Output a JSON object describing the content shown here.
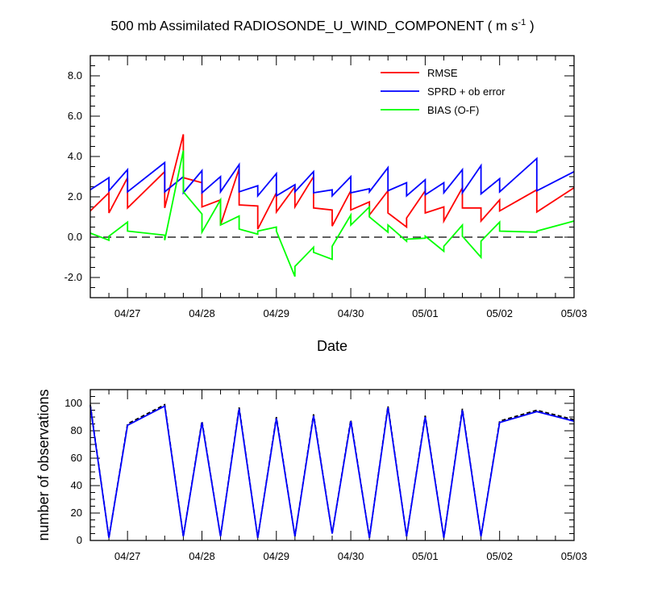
{
  "title": {
    "text": "500 mb Assimilated RADIOSONDE_U_WIND_COMPONENT ( m s",
    "sup": "-1",
    "close": " )"
  },
  "chart_data": [
    {
      "type": "line",
      "title": "500 mb Assimilated RADIOSONDE_U_WIND_COMPONENT ( m s-1 )",
      "xlabel": "Date",
      "ylabel": "",
      "xlim": [
        0,
        6.5
      ],
      "ylim": [
        -3,
        9
      ],
      "x_tick_positions": [
        0.5,
        1.5,
        2.5,
        3.5,
        4.5,
        5.5,
        6.5
      ],
      "x_tick_labels": [
        "04/27",
        "04/28",
        "04/29",
        "04/30",
        "05/01",
        "05/02",
        "05/03"
      ],
      "y_ticks": [
        -2,
        0,
        2,
        4,
        6,
        8
      ],
      "y_tick_labels": [
        "-2.0",
        "0.0",
        "2.0",
        "4.0",
        "6.0",
        "8.0"
      ],
      "legend_position": "top-right",
      "zero_line": "dashed",
      "series": [
        {
          "name": "RMSE",
          "color": "#ff0000",
          "points": [
            [
              0,
              1.3
            ],
            [
              0.25,
              2.2
            ],
            [
              0.25,
              1.2
            ],
            [
              0.5,
              2.95
            ],
            [
              0.5,
              1.45
            ],
            [
              1.0,
              3.25
            ],
            [
              1.0,
              1.45
            ],
            [
              1.25,
              5.1
            ],
            [
              1.25,
              2.95
            ],
            [
              1.5,
              2.7
            ],
            [
              1.5,
              1.5
            ],
            [
              1.75,
              1.85
            ],
            [
              1.75,
              0.6
            ],
            [
              2.0,
              3.4
            ],
            [
              2.0,
              1.6
            ],
            [
              2.25,
              1.55
            ],
            [
              2.25,
              0.4
            ],
            [
              2.5,
              2.2
            ],
            [
              2.5,
              1.25
            ],
            [
              2.75,
              2.5
            ],
            [
              2.75,
              1.5
            ],
            [
              3.0,
              3.0
            ],
            [
              3.0,
              1.45
            ],
            [
              3.25,
              1.35
            ],
            [
              3.25,
              0.55
            ],
            [
              3.5,
              2.3
            ],
            [
              3.5,
              1.35
            ],
            [
              3.75,
              1.75
            ],
            [
              3.75,
              1.1
            ],
            [
              4.0,
              2.3
            ],
            [
              4.0,
              1.2
            ],
            [
              4.25,
              0.5
            ],
            [
              4.25,
              0.95
            ],
            [
              4.5,
              2.3
            ],
            [
              4.5,
              1.2
            ],
            [
              4.75,
              1.5
            ],
            [
              4.75,
              0.8
            ],
            [
              5.0,
              2.45
            ],
            [
              5.0,
              1.45
            ],
            [
              5.25,
              1.45
            ],
            [
              5.25,
              0.8
            ],
            [
              5.5,
              1.85
            ],
            [
              5.5,
              1.3
            ],
            [
              6.0,
              2.35
            ],
            [
              6.0,
              1.25
            ],
            [
              6.5,
              2.45
            ]
          ]
        },
        {
          "name": "SPRD + ob error",
          "color": "#0000ff",
          "points": [
            [
              0,
              2.35
            ],
            [
              0.25,
              2.95
            ],
            [
              0.25,
              2.3
            ],
            [
              0.5,
              3.35
            ],
            [
              0.5,
              2.25
            ],
            [
              1.0,
              3.7
            ],
            [
              1.0,
              2.25
            ],
            [
              1.25,
              3.0
            ],
            [
              1.25,
              2.2
            ],
            [
              1.5,
              3.3
            ],
            [
              1.5,
              2.2
            ],
            [
              1.75,
              3.0
            ],
            [
              1.75,
              2.25
            ],
            [
              2.0,
              3.6
            ],
            [
              2.0,
              2.25
            ],
            [
              2.25,
              2.55
            ],
            [
              2.25,
              2.05
            ],
            [
              2.5,
              3.15
            ],
            [
              2.5,
              2.05
            ],
            [
              2.75,
              2.6
            ],
            [
              2.75,
              2.25
            ],
            [
              3.0,
              3.25
            ],
            [
              3.0,
              2.2
            ],
            [
              3.25,
              2.35
            ],
            [
              3.25,
              2.05
            ],
            [
              3.5,
              3.0
            ],
            [
              3.5,
              2.2
            ],
            [
              3.75,
              2.4
            ],
            [
              3.75,
              2.25
            ],
            [
              4.0,
              3.45
            ],
            [
              4.0,
              2.3
            ],
            [
              4.25,
              2.7
            ],
            [
              4.25,
              2.05
            ],
            [
              4.5,
              2.85
            ],
            [
              4.5,
              2.1
            ],
            [
              4.75,
              2.7
            ],
            [
              4.75,
              2.2
            ],
            [
              5.0,
              3.35
            ],
            [
              5.0,
              2.2
            ],
            [
              5.25,
              3.55
            ],
            [
              5.25,
              2.15
            ],
            [
              5.5,
              2.9
            ],
            [
              5.5,
              2.25
            ],
            [
              6.0,
              3.9
            ],
            [
              6.0,
              2.3
            ],
            [
              6.5,
              3.25
            ]
          ]
        },
        {
          "name": "BIAS (O-F)",
          "color": "#00ff00",
          "points": [
            [
              0,
              0.2
            ],
            [
              0.25,
              -0.15
            ],
            [
              0.25,
              0.05
            ],
            [
              0.5,
              0.75
            ],
            [
              0.5,
              0.3
            ],
            [
              1.0,
              0.1
            ],
            [
              1.0,
              -0.15
            ],
            [
              1.25,
              4.3
            ],
            [
              1.25,
              2.25
            ],
            [
              1.5,
              1.15
            ],
            [
              1.5,
              0.25
            ],
            [
              1.75,
              1.85
            ],
            [
              1.75,
              0.6
            ],
            [
              2.0,
              1.05
            ],
            [
              2.0,
              0.4
            ],
            [
              2.25,
              0.15
            ],
            [
              2.25,
              0.3
            ],
            [
              2.5,
              0.5
            ],
            [
              2.5,
              0.3
            ],
            [
              2.75,
              -1.95
            ],
            [
              2.75,
              -1.45
            ],
            [
              3.0,
              -0.5
            ],
            [
              3.0,
              -0.75
            ],
            [
              3.25,
              -1.1
            ],
            [
              3.25,
              -0.45
            ],
            [
              3.5,
              1.1
            ],
            [
              3.5,
              0.6
            ],
            [
              3.75,
              1.5
            ],
            [
              3.75,
              1.0
            ],
            [
              4.0,
              0.25
            ],
            [
              4.0,
              0.6
            ],
            [
              4.25,
              -0.2
            ],
            [
              4.25,
              -0.1
            ],
            [
              4.5,
              -0.05
            ],
            [
              4.5,
              0.05
            ],
            [
              4.75,
              -0.7
            ],
            [
              4.75,
              -0.45
            ],
            [
              5.0,
              0.6
            ],
            [
              5.0,
              0.05
            ],
            [
              5.25,
              -1.0
            ],
            [
              5.25,
              -0.2
            ],
            [
              5.5,
              0.75
            ],
            [
              5.5,
              0.3
            ],
            [
              6.0,
              0.25
            ],
            [
              6.0,
              0.3
            ],
            [
              6.5,
              0.8
            ]
          ]
        }
      ]
    },
    {
      "type": "line",
      "title": "",
      "xlabel": "",
      "ylabel": "number of observations",
      "xlim": [
        0,
        6.5
      ],
      "ylim": [
        0,
        110
      ],
      "x_tick_positions": [
        0.5,
        1.5,
        2.5,
        3.5,
        4.5,
        5.5,
        6.5
      ],
      "x_tick_labels": [
        "04/27",
        "04/28",
        "04/29",
        "04/30",
        "05/01",
        "05/02",
        "05/03"
      ],
      "y_ticks": [
        0,
        20,
        40,
        60,
        80,
        100
      ],
      "y_tick_labels": [
        "0",
        "20",
        "40",
        "60",
        "80",
        "100"
      ],
      "series": [
        {
          "style": "dashed",
          "color": "#000000",
          "points": [
            [
              0,
              99
            ],
            [
              0.25,
              2
            ],
            [
              0.5,
              85
            ],
            [
              1.0,
              99
            ],
            [
              1.25,
              3
            ],
            [
              1.5,
              87
            ],
            [
              1.75,
              3
            ],
            [
              2.0,
              97
            ],
            [
              2.25,
              2
            ],
            [
              2.5,
              90
            ],
            [
              2.75,
              3
            ],
            [
              3.0,
              92
            ],
            [
              3.25,
              5
            ],
            [
              3.5,
              88
            ],
            [
              3.75,
              2
            ],
            [
              4.0,
              98
            ],
            [
              4.25,
              3
            ],
            [
              4.5,
              91
            ],
            [
              4.75,
              2
            ],
            [
              5.0,
              96
            ],
            [
              5.25,
              3
            ],
            [
              5.5,
              87
            ],
            [
              6.0,
              95
            ],
            [
              6.5,
              88
            ]
          ]
        },
        {
          "style": "solid",
          "color": "#0000ff",
          "points": [
            [
              0,
              98
            ],
            [
              0.25,
              2
            ],
            [
              0.5,
              84
            ],
            [
              1.0,
              98
            ],
            [
              1.25,
              3
            ],
            [
              1.5,
              86
            ],
            [
              1.75,
              3
            ],
            [
              2.0,
              96
            ],
            [
              2.25,
              2
            ],
            [
              2.5,
              89
            ],
            [
              2.75,
              3
            ],
            [
              3.0,
              91
            ],
            [
              3.25,
              5
            ],
            [
              3.5,
              87
            ],
            [
              3.75,
              2
            ],
            [
              4.0,
              97
            ],
            [
              4.25,
              3
            ],
            [
              4.5,
              90
            ],
            [
              4.75,
              2
            ],
            [
              5.0,
              95
            ],
            [
              5.25,
              3
            ],
            [
              5.5,
              86
            ],
            [
              6.0,
              94
            ],
            [
              6.5,
              87
            ]
          ]
        }
      ]
    }
  ]
}
